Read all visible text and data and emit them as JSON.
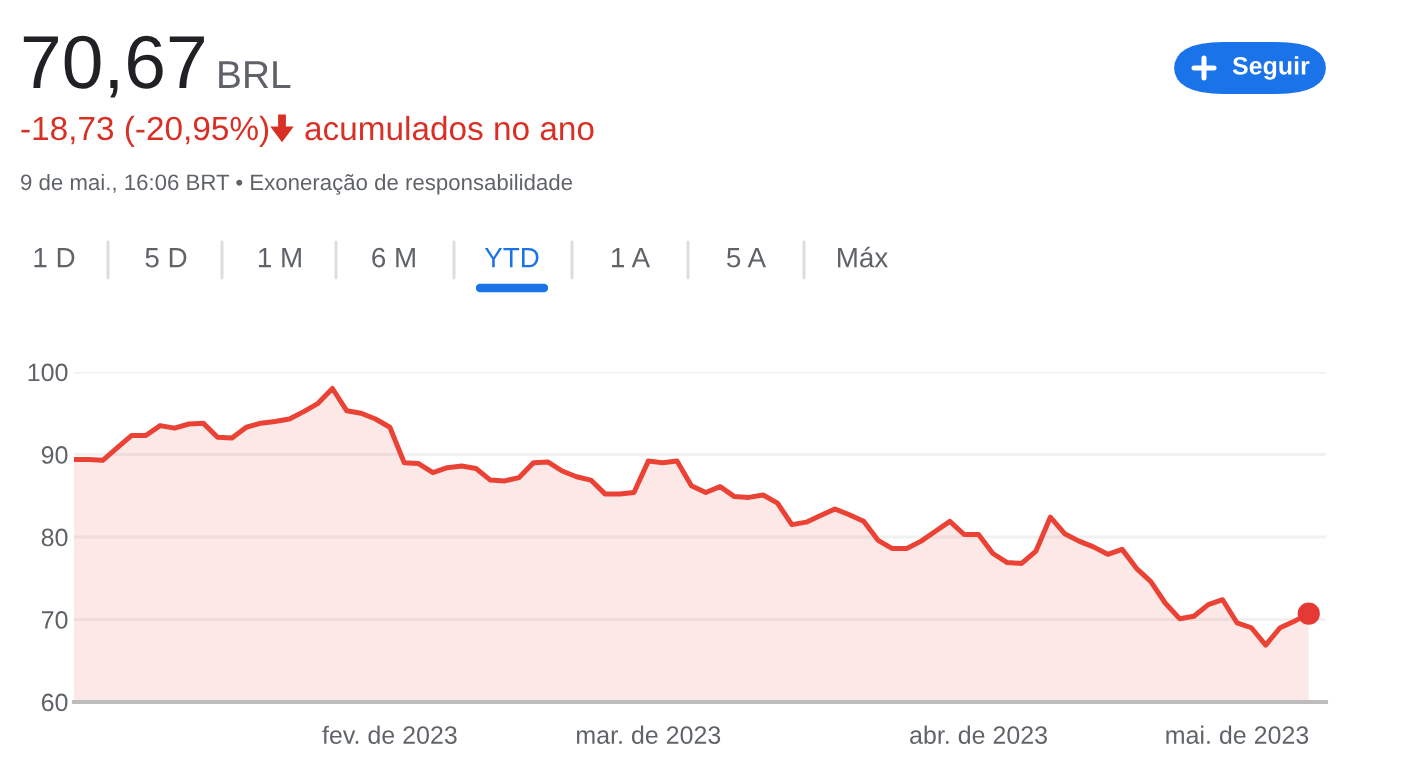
{
  "chart_data": {
    "type": "area",
    "title": "70,67",
    "subtitle": "BRL",
    "annotations": [
      "-18,73 (-20,95%)",
      "acumulados no ano",
      "9 de mai., 16:06 BRT • Exoneração de responsabilidade",
      "Seguir",
      "1 D",
      "5 D",
      "1 M",
      "6 M",
      "YTD",
      "1 A",
      "5 A",
      "Máx"
    ],
    "categories": [
      null,
      null,
      null,
      null,
      null,
      null,
      null,
      null,
      null,
      null,
      null,
      null,
      null,
      null,
      null,
      null,
      null,
      null,
      null,
      null,
      null,
      null,
      "fev. de 2023",
      null,
      null,
      null,
      null,
      null,
      null,
      null,
      null,
      null,
      null,
      null,
      null,
      null,
      null,
      null,
      null,
      null,
      "mar. de 2023",
      null,
      null,
      null,
      null,
      null,
      null,
      null,
      null,
      null,
      null,
      null,
      null,
      null,
      null,
      null,
      null,
      null,
      null,
      null,
      null,
      null,
      null,
      "abr. de 2023",
      null,
      null,
      null,
      null,
      null,
      null,
      null,
      null,
      null,
      null,
      null,
      null,
      null,
      null,
      null,
      null,
      null,
      "mai. de 2023",
      null,
      null,
      null,
      null,
      null
    ],
    "series": [
      {
        "color": "#ea4335",
        "values": [
          89.4,
          89.4,
          89.3,
          90.8,
          92.3,
          92.3,
          93.5,
          93.2,
          93.7,
          93.8,
          92.1,
          92.0,
          93.3,
          93.8,
          94.0,
          94.3,
          95.2,
          96.2,
          98.0,
          95.3,
          95.0,
          94.3,
          93.3,
          89.0,
          88.9,
          87.8,
          88.4,
          88.6,
          88.3,
          86.9,
          86.8,
          87.2,
          89.0,
          89.1,
          88.0,
          87.3,
          86.9,
          85.2,
          85.2,
          85.4,
          89.2,
          89.0,
          89.2,
          86.2,
          85.4,
          86.1,
          84.9,
          84.8,
          85.1,
          84.1,
          81.5,
          81.8,
          82.6,
          83.4,
          82.7,
          81.9,
          79.6,
          78.6,
          78.6,
          79.5,
          80.7,
          81.9,
          80.3,
          80.3,
          78.0,
          76.9,
          76.8,
          78.3,
          82.4,
          80.4,
          79.5,
          78.8,
          77.9,
          78.5,
          76.2,
          74.6,
          72.0,
          70.1,
          70.4,
          71.8,
          72.4,
          69.6,
          69.0,
          66.9,
          69.0,
          69.8,
          70.7
        ]
      },
      {
        "type": "scatter",
        "color": "#e53935",
        "values": [
          null,
          null,
          null,
          null,
          null,
          null,
          null,
          null,
          null,
          null,
          null,
          null,
          null,
          null,
          null,
          null,
          null,
          null,
          null,
          null,
          null,
          null,
          null,
          null,
          null,
          null,
          null,
          null,
          null,
          null,
          null,
          null,
          null,
          null,
          null,
          null,
          null,
          null,
          null,
          null,
          null,
          null,
          null,
          null,
          null,
          null,
          null,
          null,
          null,
          null,
          null,
          null,
          null,
          null,
          null,
          null,
          null,
          null,
          null,
          null,
          null,
          null,
          null,
          null,
          null,
          null,
          null,
          null,
          null,
          null,
          null,
          null,
          null,
          null,
          null,
          null,
          null,
          null,
          null,
          null,
          null,
          null,
          null,
          null,
          null,
          null,
          70.7
        ],
        "marker": "circle"
      }
    ],
    "marker": "none",
    "line_style": "solid",
    "ylim": [
      60,
      100
    ],
    "yticks": [
      60,
      70,
      80,
      90,
      100
    ],
    "grid": "y",
    "legend": false
  }
}
